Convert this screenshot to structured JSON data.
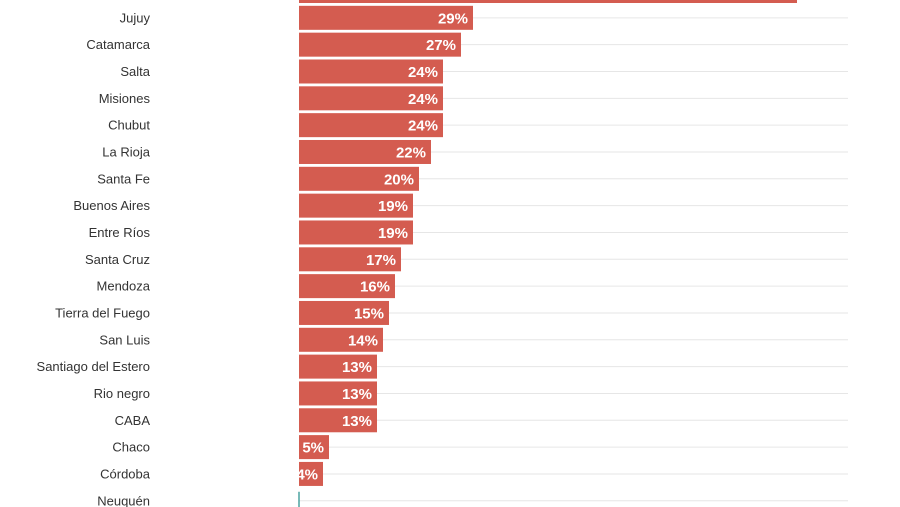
{
  "chart_data": {
    "type": "bar",
    "orientation": "horizontal",
    "categories": [
      "",
      "Jujuy",
      "Catamarca",
      "Salta",
      "Misiones",
      "Chubut",
      "La Rioja",
      "Santa Fe",
      "Buenos Aires",
      "Entre Ríos",
      "Santa Cruz",
      "Mendoza",
      "Tierra del Fuego",
      "San Luis",
      "Santiago del Estero",
      "Rio negro",
      "CABA",
      "Chaco",
      "Córdoba",
      "Neuquén"
    ],
    "values": [
      83,
      29,
      27,
      24,
      24,
      24,
      22,
      20,
      19,
      19,
      17,
      16,
      15,
      14,
      13,
      13,
      13,
      5,
      4,
      0
    ],
    "value_labels": [
      "",
      "29%",
      "27%",
      "24%",
      "24%",
      "24%",
      "22%",
      "20%",
      "19%",
      "19%",
      "17%",
      "16%",
      "15%",
      "14%",
      "13%",
      "13%",
      "13%",
      "5%",
      "4%",
      ""
    ],
    "xlim": [
      0,
      91
    ],
    "grid": true,
    "colors": {
      "bar": "#d45c50",
      "zero_marker": "#4aa3a0",
      "grid": "#e6e6e6",
      "label": "#333333",
      "value_text": "#ffffff"
    }
  }
}
